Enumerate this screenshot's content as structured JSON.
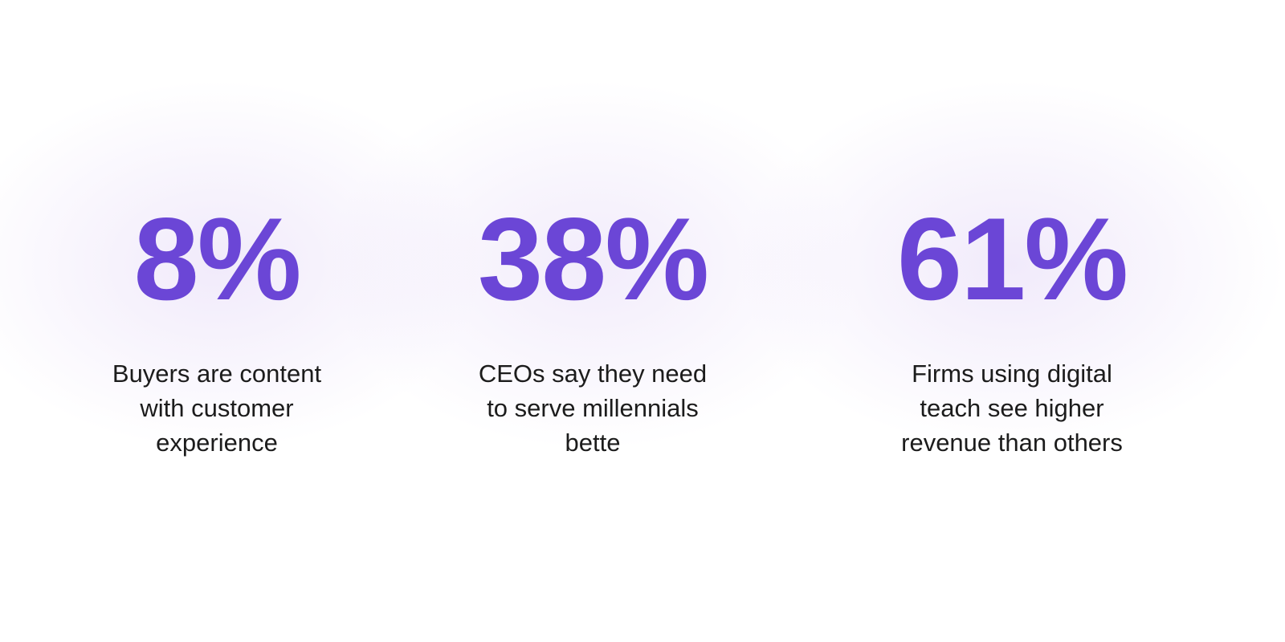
{
  "stats": [
    {
      "value": "8%",
      "description": [
        "Buyers are content",
        "with customer",
        "experience"
      ]
    },
    {
      "value": "38%",
      "description": [
        "CEOs say they need",
        "to serve millennials",
        "bette"
      ]
    },
    {
      "value": "61%",
      "description": [
        "Firms using digital",
        "teach see higher",
        "revenue than others"
      ]
    }
  ]
}
